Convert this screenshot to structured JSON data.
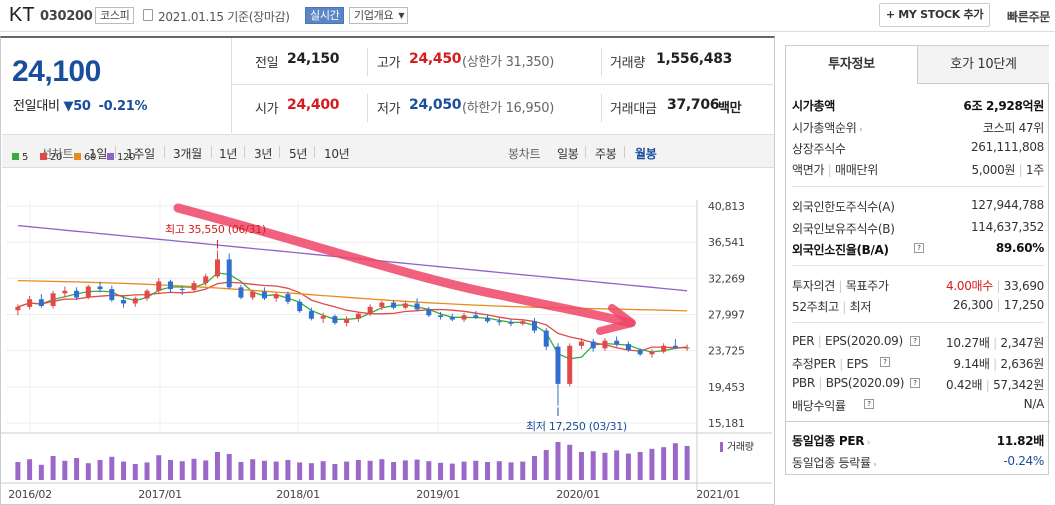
{
  "header": {
    "stock_name": "KT",
    "code": "030200",
    "market_badge": "코스피",
    "date_text": "2021.01.15 기준(장마감)",
    "realtime_label": "실시간",
    "company_info_label": "기업개요",
    "mystock_label": "+ MY STOCK 추가",
    "quick_order_label": "빠른주문"
  },
  "quote": {
    "price": "24,100",
    "change_label": "전일대비",
    "change_value": "50",
    "change_pct": "-0.21%",
    "prev_close_label": "전일",
    "prev_close": "24,150",
    "high_label": "고가",
    "high": "24,450",
    "upper_limit": "(상한가 31,350)",
    "volume_label": "거래량",
    "volume": "1,556,483",
    "open_label": "시가",
    "open": "24,400",
    "low_label": "저가",
    "low": "24,050",
    "lower_limit": "(하한가 16,950)",
    "amount_label": "거래대금",
    "amount": "37,706",
    "amount_unit": "백만"
  },
  "periods": {
    "line_label": "선차트",
    "items": [
      "1일",
      "1주일",
      "3개월",
      "1년",
      "3년",
      "5년",
      "10년"
    ],
    "candle_label": "봉차트",
    "candle_items": [
      "일봉",
      "주봉",
      "월봉"
    ],
    "active_candle": "월봉"
  },
  "chart_data": {
    "type": "candlestick",
    "legend": [
      {
        "name": "5",
        "color": "#3cab3c"
      },
      {
        "name": "20",
        "color": "#e04a4a"
      },
      {
        "name": "60",
        "color": "#e88b1f"
      },
      {
        "name": "120",
        "color": "#8e64c8"
      }
    ],
    "y_ticks": [
      "40,813",
      "36,541",
      "32,269",
      "27,997",
      "23,725",
      "19,453",
      "15,181"
    ],
    "ylim": [
      15181,
      40813
    ],
    "x_ticks": [
      "2016/02",
      "2017/01",
      "2018/01",
      "2019/01",
      "2020/01",
      "2021/01"
    ],
    "max_label": "최고 35,550 (06/31)",
    "min_label": "최저 17,250 (03/31)",
    "volume_label": "거래량",
    "candles": [
      [
        28500,
        29200,
        27900,
        28900
      ],
      [
        28900,
        30200,
        28600,
        29800
      ],
      [
        29800,
        30400,
        28800,
        29000
      ],
      [
        29000,
        30800,
        28700,
        30500
      ],
      [
        30500,
        31300,
        30000,
        30800
      ],
      [
        30800,
        31200,
        29700,
        30000
      ],
      [
        30000,
        31500,
        29800,
        31300
      ],
      [
        31300,
        31900,
        30600,
        31000
      ],
      [
        31000,
        31400,
        29500,
        29700
      ],
      [
        29700,
        30200,
        28800,
        29300
      ],
      [
        29300,
        30100,
        28900,
        29900
      ],
      [
        29900,
        31000,
        29600,
        30800
      ],
      [
        30800,
        32300,
        30400,
        31900
      ],
      [
        31900,
        32100,
        30600,
        31000
      ],
      [
        31000,
        31400,
        30300,
        30900
      ],
      [
        30900,
        32000,
        30700,
        31700
      ],
      [
        31700,
        32800,
        31400,
        32500
      ],
      [
        32500,
        35550,
        32300,
        34500
      ],
      [
        34500,
        35200,
        31000,
        31200
      ],
      [
        31200,
        31500,
        29800,
        30000
      ],
      [
        30000,
        30900,
        29700,
        30700
      ],
      [
        30700,
        31200,
        29700,
        29900
      ],
      [
        29900,
        30600,
        29500,
        30400
      ],
      [
        30400,
        30700,
        29200,
        29500
      ],
      [
        29500,
        29800,
        28200,
        28400
      ],
      [
        28400,
        28800,
        27300,
        27500
      ],
      [
        27500,
        28200,
        27000,
        27800
      ],
      [
        27800,
        28000,
        26800,
        27000
      ],
      [
        27000,
        27800,
        26600,
        27500
      ],
      [
        27500,
        28300,
        27100,
        28100
      ],
      [
        28100,
        29200,
        27800,
        28900
      ],
      [
        28900,
        29600,
        28500,
        29400
      ],
      [
        29400,
        29700,
        28600,
        28800
      ],
      [
        28800,
        29600,
        28600,
        29300
      ],
      [
        29300,
        29900,
        28400,
        28600
      ],
      [
        28600,
        28900,
        27700,
        27900
      ],
      [
        27900,
        28300,
        27400,
        27700
      ],
      [
        27700,
        28100,
        27200,
        27400
      ],
      [
        27400,
        28200,
        27100,
        27900
      ],
      [
        27900,
        28400,
        27500,
        27600
      ],
      [
        27600,
        28000,
        27000,
        27200
      ],
      [
        27200,
        27600,
        26700,
        27100
      ],
      [
        27100,
        27500,
        26600,
        26900
      ],
      [
        26900,
        27400,
        26700,
        27200
      ],
      [
        27200,
        27600,
        25800,
        26100
      ],
      [
        26100,
        26400,
        23800,
        24200
      ],
      [
        24200,
        24600,
        17250,
        19800
      ],
      [
        19800,
        24600,
        19500,
        24300
      ],
      [
        24300,
        25200,
        23900,
        24800
      ],
      [
        24800,
        25100,
        23600,
        24000
      ],
      [
        24000,
        25200,
        23700,
        24900
      ],
      [
        24900,
        25400,
        24200,
        24500
      ],
      [
        24500,
        24800,
        23600,
        23800
      ],
      [
        23800,
        24000,
        23100,
        23300
      ],
      [
        23300,
        23900,
        22900,
        23600
      ],
      [
        23600,
        24600,
        23400,
        24300
      ],
      [
        24300,
        25100,
        23900,
        24100
      ],
      [
        24100,
        24450,
        23700,
        24100
      ]
    ],
    "volumes": [
      45,
      52,
      38,
      60,
      48,
      55,
      42,
      50,
      58,
      46,
      40,
      44,
      62,
      50,
      47,
      53,
      49,
      70,
      65,
      45,
      52,
      48,
      46,
      50,
      44,
      42,
      47,
      40,
      46,
      50,
      48,
      52,
      45,
      49,
      51,
      47,
      43,
      41,
      46,
      48,
      45,
      47,
      44,
      46,
      60,
      75,
      95,
      88,
      70,
      72,
      68,
      74,
      66,
      70,
      78,
      82,
      92,
      85
    ]
  },
  "side": {
    "tab_active": "투자정보",
    "tab_other": "호가 10단계",
    "market_cap_label": "시가총액",
    "market_cap": "6조 2,928억원",
    "rank_label": "시가총액순위",
    "rank": "코스피 47위",
    "shares_label": "상장주식수",
    "shares": "261,111,808",
    "par_label": "액면가",
    "trade_unit_label": "매매단위",
    "par": "5,000원",
    "trade_unit": "1주",
    "foreign_limit_label": "외국인한도주식수(A)",
    "foreign_limit": "127,944,788",
    "foreign_hold_label": "외국인보유주식수(B)",
    "foreign_hold": "114,637,352",
    "foreign_ratio_label": "외국인소진율(B/A)",
    "foreign_ratio": "89.60%",
    "opinion_label": "투자의견",
    "target_label": "목표주가",
    "opinion": "4.00매수",
    "target": "33,690",
    "w52_label": "52주최고",
    "w52_low_label": "최저",
    "w52_high": "26,300",
    "w52_low": "17,250",
    "per_label": "PER",
    "eps_label": "EPS(2020.09)",
    "per": "10.27배",
    "eps": "2,347원",
    "est_per_label": "추정PER",
    "est_eps_label": "EPS",
    "est_per": "9.14배",
    "est_eps": "2,636원",
    "pbr_label": "PBR",
    "bps_label": "BPS(2020.09)",
    "pbr": "0.42배",
    "bps": "57,342원",
    "div_label": "배당수익률",
    "div": "N/A",
    "ind_per_label": "동일업종 PER",
    "ind_per": "11.82배",
    "ind_rate_label": "동일업종 등락률",
    "ind_rate": "-0.24%"
  }
}
